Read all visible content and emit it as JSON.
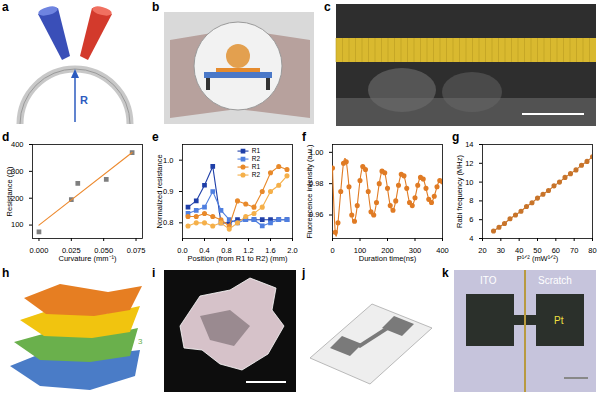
{
  "images": [
    {
      "panel": "a",
      "labels": [
        "R"
      ]
    },
    {
      "panel": "b"
    },
    {
      "panel": "c"
    },
    {
      "panel": "h",
      "labels": [
        "3"
      ]
    },
    {
      "panel": "i"
    },
    {
      "panel": "j"
    },
    {
      "panel": "k",
      "labels": [
        "ITO",
        "Scratch",
        "Pt"
      ]
    }
  ],
  "chart_data": [
    {
      "panel": "d",
      "type": "scatter",
      "x_label": "Curvature (mm⁻¹)",
      "y_label": "Resistance (Ω)",
      "xlim": [
        -0.005,
        0.08
      ],
      "ylim": [
        50,
        400
      ],
      "xticks": [
        {
          "value": 0,
          "label": "0.000"
        },
        0.025,
        {
          "value": 0.05,
          "label": "0.050"
        },
        0.075
      ],
      "yticks": [
        100,
        200,
        300,
        400
      ],
      "series": [
        {
          "x": [
            0,
            0.025,
            0.03,
            0.052,
            0.072
          ],
          "values": [
            75,
            195,
            255,
            270,
            370
          ],
          "color": "#7f7f7f",
          "marker": "square"
        },
        {
          "type": "line",
          "x": [
            0,
            0.072
          ],
          "values": [
            100,
            370
          ],
          "color": "#ed8a2f",
          "line_style": "solid"
        }
      ]
    },
    {
      "panel": "e",
      "type": "line",
      "x_label": "Position (from R1 to R2) (mm)",
      "y_label": "Normalized resistance",
      "xlim": [
        0,
        2
      ],
      "ylim": [
        0.75,
        1.05
      ],
      "xticks": [
        {
          "value": 0,
          "label": "0.0"
        },
        0.4,
        0.8,
        1.2,
        1.6,
        {
          "value": 2,
          "label": "2.0"
        }
      ],
      "yticks": [
        0.8,
        0.9,
        {
          "value": 1,
          "label": "1.0"
        }
      ],
      "legend": "top",
      "x": [
        0.1,
        0.25,
        0.4,
        0.55,
        0.7,
        0.85,
        1.0,
        1.15,
        1.3,
        1.45,
        1.6,
        1.75,
        1.9
      ],
      "series": [
        {
          "name": "R1",
          "color": "#1f3fa8",
          "marker": "square",
          "line_style": "solid",
          "values": [
            0.85,
            0.87,
            0.92,
            0.98,
            0.8,
            0.8,
            0.81,
            0.81,
            0.81,
            0.81,
            0.81,
            0.81,
            0.81
          ]
        },
        {
          "name": "R2",
          "color": "#4f7fe0",
          "marker": "square",
          "line_style": "solid",
          "values": [
            0.83,
            0.84,
            0.85,
            0.9,
            0.84,
            0.81,
            0.8,
            0.81,
            0.81,
            0.79,
            0.8,
            0.81,
            0.81
          ]
        },
        {
          "name": "R1",
          "color": "#e8892a",
          "marker": "circle",
          "line_style": "solid",
          "values": [
            0.82,
            0.82,
            0.83,
            0.82,
            0.81,
            0.79,
            0.87,
            0.86,
            0.85,
            0.9,
            0.96,
            0.98,
            0.97
          ]
        },
        {
          "name": "R2",
          "color": "#f5b04a",
          "marker": "circle",
          "line_style": "solid",
          "values": [
            0.79,
            0.8,
            0.8,
            0.79,
            0.8,
            0.78,
            0.8,
            0.82,
            0.83,
            0.85,
            0.9,
            0.92,
            0.95
          ]
        }
      ]
    },
    {
      "panel": "f",
      "type": "line",
      "x_label": "Duration time(ns)",
      "y_label": "Fluorescence intensity (a.u.)",
      "xlim": [
        0,
        400
      ],
      "ylim": [
        0.945,
        1.005
      ],
      "xticks": [
        0,
        100,
        200,
        300,
        400
      ],
      "yticks": [
        0.96,
        0.98,
        {
          "value": 1,
          "label": "1.00"
        }
      ],
      "x": [
        0,
        10,
        20,
        30,
        40,
        50,
        60,
        70,
        80,
        90,
        100,
        110,
        120,
        130,
        140,
        150,
        160,
        170,
        180,
        190,
        200,
        210,
        220,
        230,
        240,
        250,
        260,
        270,
        280,
        290,
        300,
        310,
        320,
        330,
        340,
        350,
        360,
        370,
        380,
        390,
        400
      ],
      "series": [
        {
          "color": "#e07b24",
          "marker": "circle",
          "line_style": "solid",
          "values": [
            0.99,
            0.949,
            0.955,
            0.975,
            0.993,
            0.994,
            0.978,
            0.96,
            0.956,
            0.966,
            0.982,
            0.991,
            0.989,
            0.975,
            0.962,
            0.96,
            0.968,
            0.98,
            0.988,
            0.987,
            0.977,
            0.966,
            0.963,
            0.969,
            0.979,
            0.986,
            0.985,
            0.977,
            0.968,
            0.966,
            0.971,
            0.979,
            0.984,
            0.983,
            0.977,
            0.97,
            0.968,
            0.972,
            0.978,
            0.982,
            0.981
          ]
        }
      ]
    },
    {
      "panel": "g",
      "type": "line",
      "x_label": "P¹ᐟ² (mW¹ᐟ²)",
      "y_label": "Rabi frequency (MHz)",
      "xlim": [
        20,
        80
      ],
      "ylim": [
        4,
        14
      ],
      "xticks": [
        20,
        30,
        40,
        50,
        60,
        70,
        80
      ],
      "yticks": [
        4,
        6,
        8,
        10,
        12,
        14
      ],
      "x": [
        26,
        29,
        32,
        35,
        38,
        41,
        44,
        47,
        50,
        53,
        56,
        59,
        62,
        65,
        68,
        71,
        74,
        77,
        80
      ],
      "series": [
        {
          "color": "#c8742a",
          "marker": "circle",
          "line_style": "solid",
          "values": [
            4.8,
            5.2,
            5.6,
            6.1,
            6.5,
            6.9,
            7.4,
            7.8,
            8.3,
            8.7,
            9.1,
            9.6,
            10.0,
            10.5,
            10.9,
            11.3,
            11.8,
            12.2,
            12.7
          ]
        }
      ]
    }
  ]
}
